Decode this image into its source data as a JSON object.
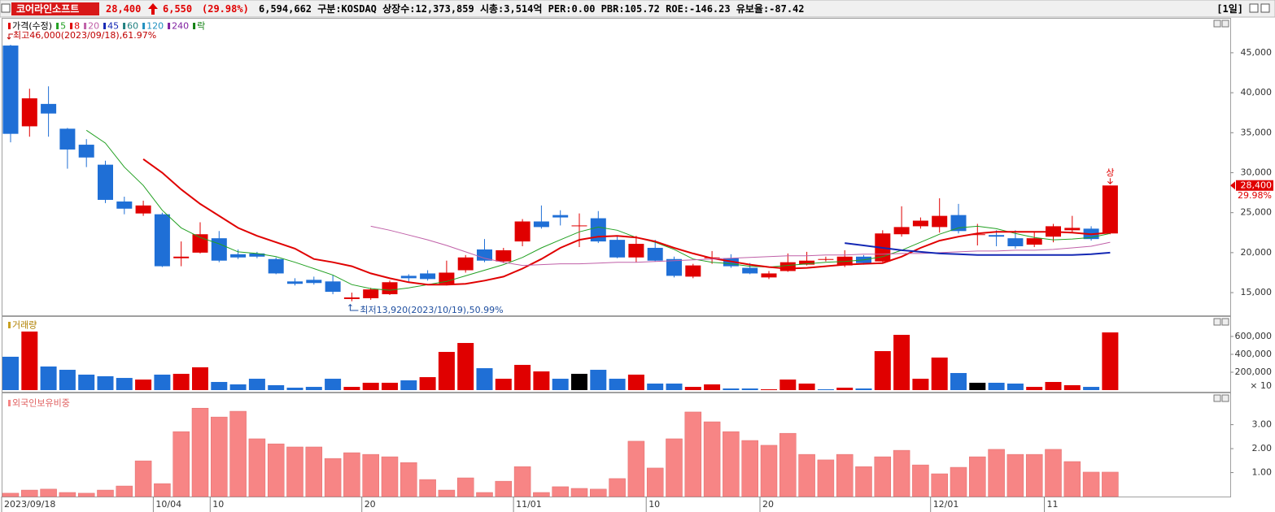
{
  "header": {
    "name": "코어라인소프트",
    "price": "28,400",
    "change": "6,550",
    "change_pct": "(29.98%)",
    "info": "6,594,662 구분:KOSDAQ 상장수:12,373,859 시총:3,514억 PER:0.00 PBR:105.72 ROE:-146.23 유보율:-87.42",
    "period": "[1일]"
  },
  "chart_data": [
    {
      "type": "candlestick",
      "legend_price": "가격(수정)",
      "categories": [
        "2023/09/18",
        null,
        null,
        null,
        null,
        null,
        null,
        null,
        "10/04",
        null,
        null,
        "10",
        null,
        null,
        null,
        null,
        null,
        null,
        null,
        "20",
        null,
        null,
        null,
        null,
        null,
        null,
        null,
        "11/01",
        null,
        null,
        null,
        null,
        null,
        null,
        "10",
        null,
        null,
        null,
        null,
        null,
        "20",
        null,
        null,
        null,
        null,
        null,
        null,
        null,
        null,
        "12/01",
        null,
        null,
        null,
        null,
        null,
        "11",
        null,
        null,
        null
      ],
      "open": [
        45900,
        35800,
        38600,
        35500,
        33500,
        31000,
        26400,
        24900,
        24800,
        19300,
        20000,
        21800,
        19800,
        19900,
        19200,
        16400,
        16600,
        16400,
        14200,
        14300,
        14800,
        17100,
        17400,
        16100,
        17800,
        20400,
        18900,
        21400,
        23900,
        24700,
        23300,
        24300,
        21600,
        19400,
        20600,
        19200,
        17000,
        19300,
        19300,
        18100,
        16900,
        17700,
        18500,
        19100,
        18400,
        19500,
        18900,
        22300,
        23300,
        23200,
        24700,
        22200,
        22200,
        21800,
        21000,
        22000,
        22800,
        23000,
        22400
      ],
      "high": [
        46000,
        40500,
        40800,
        35600,
        34200,
        31500,
        27000,
        26500,
        25000,
        21400,
        23800,
        22700,
        20400,
        20100,
        19400,
        16800,
        17000,
        17200,
        15000,
        15600,
        16500,
        17300,
        17800,
        19000,
        19700,
        21700,
        20600,
        24200,
        25900,
        25300,
        24900,
        25200,
        22000,
        22100,
        21600,
        19500,
        18600,
        20200,
        19800,
        18700,
        17700,
        19900,
        20100,
        19500,
        20300,
        19700,
        22800,
        25800,
        24400,
        26800,
        26100,
        23600,
        22800,
        22800,
        22600,
        23600,
        24600,
        23300,
        28400
      ],
      "low": [
        33800,
        34500,
        34500,
        30500,
        30700,
        26200,
        24800,
        24600,
        18200,
        18300,
        19900,
        18800,
        19200,
        19300,
        17300,
        15900,
        16000,
        14800,
        13920,
        14100,
        14700,
        16300,
        16500,
        15900,
        17500,
        18800,
        18700,
        20800,
        23000,
        23400,
        20700,
        21200,
        19300,
        18800,
        18900,
        16900,
        16800,
        18600,
        18100,
        17300,
        16700,
        17600,
        18400,
        18900,
        18200,
        18500,
        18800,
        22000,
        23000,
        22500,
        22400,
        20900,
        20800,
        20500,
        20700,
        21300,
        22500,
        21500,
        22300
      ],
      "close": [
        34860,
        39300,
        37400,
        32900,
        31900,
        26600,
        25500,
        25900,
        18300,
        19500,
        22300,
        19000,
        19400,
        19500,
        17400,
        16100,
        16200,
        15100,
        14400,
        15400,
        16300,
        16800,
        16700,
        17500,
        19400,
        19000,
        20300,
        23900,
        23200,
        24400,
        23400,
        21400,
        19400,
        21100,
        19000,
        17100,
        18400,
        19400,
        18300,
        17400,
        17400,
        18800,
        19000,
        19200,
        19500,
        18700,
        22400,
        23200,
        24000,
        24600,
        22700,
        22300,
        22000,
        20800,
        21800,
        23300,
        23100,
        21700,
        28400
      ],
      "up_color": "#e00000",
      "down_color": "#1f6fd6",
      "series": [
        {
          "name": "5",
          "color": "#22a022",
          "values": [
            null,
            null,
            null,
            null,
            35300,
            33700,
            30700,
            28400,
            25300,
            23100,
            21900,
            21100,
            20100,
            19900,
            19500,
            18800,
            18000,
            17200,
            16000,
            15500,
            15300,
            15600,
            16000,
            16400,
            17100,
            17800,
            18500,
            19400,
            20600,
            21600,
            22600,
            23200,
            22800,
            21900,
            21300,
            20400,
            19200,
            18800,
            18600,
            18300,
            18200,
            18400,
            18600,
            18800,
            18900,
            19100,
            19500,
            20300,
            21300,
            22300,
            23100,
            23300,
            23000,
            22400,
            21900,
            21600,
            21700,
            21900,
            22400
          ]
        },
        {
          "name": "8",
          "color": "#e00000",
          "values": [
            null,
            null,
            null,
            null,
            null,
            null,
            null,
            31700,
            30000,
            27900,
            26100,
            24600,
            23100,
            22100,
            21300,
            20500,
            19200,
            18800,
            18300,
            17400,
            16800,
            16300,
            16000,
            16000,
            16100,
            16500,
            17000,
            18000,
            19200,
            20600,
            21600,
            22000,
            22100,
            21900,
            21400,
            20600,
            19900,
            19300,
            18900,
            18500,
            18200,
            18000,
            18100,
            18300,
            18500,
            18600,
            18700,
            19500,
            20600,
            21500,
            22000,
            22400,
            22600,
            22600,
            22600,
            22600,
            22500,
            22300,
            22500
          ]
        },
        {
          "name": "20",
          "color": "#c060a8",
          "values": [
            null,
            null,
            null,
            null,
            null,
            null,
            null,
            null,
            null,
            null,
            null,
            null,
            null,
            null,
            null,
            null,
            null,
            null,
            null,
            23300,
            22800,
            22200,
            21600,
            20900,
            20100,
            19300,
            18800,
            18400,
            18500,
            18600,
            18600,
            18700,
            18800,
            18800,
            18900,
            19000,
            19100,
            19200,
            19300,
            19400,
            19500,
            19600,
            19600,
            19700,
            19700,
            19800,
            19800,
            19900,
            19900,
            20000,
            20100,
            20200,
            20200,
            20300,
            20300,
            20400,
            20600,
            20800,
            21300
          ]
        },
        {
          "name": "45",
          "color": "#1428b4",
          "values": [
            null,
            null,
            null,
            null,
            null,
            null,
            null,
            null,
            null,
            null,
            null,
            null,
            null,
            null,
            null,
            null,
            null,
            null,
            null,
            null,
            null,
            null,
            null,
            null,
            null,
            null,
            null,
            null,
            null,
            null,
            null,
            null,
            null,
            null,
            null,
            null,
            null,
            null,
            null,
            null,
            null,
            null,
            null,
            null,
            21200,
            20900,
            20600,
            20300,
            20100,
            19900,
            19800,
            19700,
            19700,
            19700,
            19700,
            19700,
            19700,
            19800,
            20000
          ]
        }
      ],
      "legend_extra": [
        {
          "name": "60",
          "color": "#208080"
        },
        {
          "name": "120",
          "color": "#2090c0"
        },
        {
          "name": "240",
          "color": "#8020a0"
        },
        {
          "name": "락",
          "color": "#108010"
        }
      ],
      "ylim": [
        12160,
        49260
      ],
      "yticks": [
        {
          "value": 15000,
          "label": "15,000"
        },
        {
          "value": 20000,
          "label": "20,000"
        },
        {
          "value": 25000,
          "label": "25,000"
        },
        {
          "value": 30000,
          "label": "30,000"
        },
        {
          "value": 35000,
          "label": "35,000"
        },
        {
          "value": 40000,
          "label": "40,000"
        },
        {
          "value": 45000,
          "label": "45,000"
        }
      ],
      "annotations": {
        "high": "최고46,000(2023/09/18),61.97%",
        "low": "최저13,920(2023/10/19),50.99%",
        "limit": "상",
        "last_price": "28,400",
        "last_change": "29.98%"
      }
    },
    {
      "type": "bar",
      "title": "거래량",
      "values": [
        373000,
        655000,
        264000,
        227000,
        173000,
        155000,
        136000,
        118000,
        173000,
        182000,
        255000,
        91000,
        64000,
        127000,
        55000,
        27000,
        36000,
        127000,
        36000,
        82000,
        82000,
        109000,
        145000,
        427000,
        527000,
        245000,
        127000,
        282000,
        209000,
        127000,
        182000,
        227000,
        127000,
        173000,
        73000,
        73000,
        36000,
        64000,
        18000,
        18000,
        9000,
        118000,
        73000,
        9000,
        27000,
        18000,
        436000,
        618000,
        127000,
        364000,
        191000,
        82000,
        82000,
        73000,
        36000,
        91000,
        55000,
        36000,
        645000
      ],
      "colors": [
        "#1f6fd6",
        "#e00000",
        "#1f6fd6",
        "#1f6fd6",
        "#1f6fd6",
        "#1f6fd6",
        "#1f6fd6",
        "#e00000",
        "#1f6fd6",
        "#e00000",
        "#e00000",
        "#1f6fd6",
        "#1f6fd6",
        "#1f6fd6",
        "#1f6fd6",
        "#1f6fd6",
        "#1f6fd6",
        "#1f6fd6",
        "#e00000",
        "#e00000",
        "#e00000",
        "#1f6fd6",
        "#e00000",
        "#e00000",
        "#e00000",
        "#1f6fd6",
        "#e00000",
        "#e00000",
        "#e00000",
        "#1f6fd6",
        "#000000",
        "#1f6fd6",
        "#1f6fd6",
        "#e00000",
        "#1f6fd6",
        "#1f6fd6",
        "#e00000",
        "#e00000",
        "#1f6fd6",
        "#1f6fd6",
        "#e00000",
        "#e00000",
        "#e00000",
        "#1f6fd6",
        "#e00000",
        "#1f6fd6",
        "#e00000",
        "#e00000",
        "#e00000",
        "#e00000",
        "#1f6fd6",
        "#000000",
        "#1f6fd6",
        "#1f6fd6",
        "#e00000",
        "#e00000",
        "#e00000",
        "#1f6fd6",
        "#e00000"
      ],
      "ylim": [
        0,
        818000
      ],
      "yticks": [
        {
          "value": 200000,
          "label": "200,000"
        },
        {
          "value": 400000,
          "label": "400,000"
        },
        {
          "value": 600000,
          "label": "600,000"
        }
      ],
      "unit_label": "× 10"
    },
    {
      "type": "bar",
      "title": "외국인보유비중",
      "color": "#f78585",
      "values": [
        0.14,
        0.27,
        0.31,
        0.17,
        0.14,
        0.27,
        0.44,
        1.49,
        0.54,
        2.71,
        3.69,
        3.32,
        3.56,
        2.41,
        2.2,
        2.07,
        2.07,
        1.59,
        1.83,
        1.76,
        1.66,
        1.42,
        0.71,
        0.27,
        0.78,
        0.17,
        0.64,
        1.25,
        0.17,
        0.41,
        0.34,
        0.31,
        0.75,
        2.31,
        1.19,
        2.41,
        3.53,
        3.12,
        2.71,
        2.34,
        2.14,
        2.64,
        1.76,
        1.53,
        1.76,
        1.25,
        1.66,
        1.93,
        1.32,
        0.95,
        1.22,
        1.66,
        1.97,
        1.76,
        1.76,
        1.97,
        1.46,
        1.02,
        1.02
      ],
      "ylim": [
        0,
        4.24
      ],
      "yticks": [
        {
          "value": 1,
          "label": "1.00"
        },
        {
          "value": 2,
          "label": "2.00"
        },
        {
          "value": 3,
          "label": "3.00"
        }
      ]
    }
  ]
}
